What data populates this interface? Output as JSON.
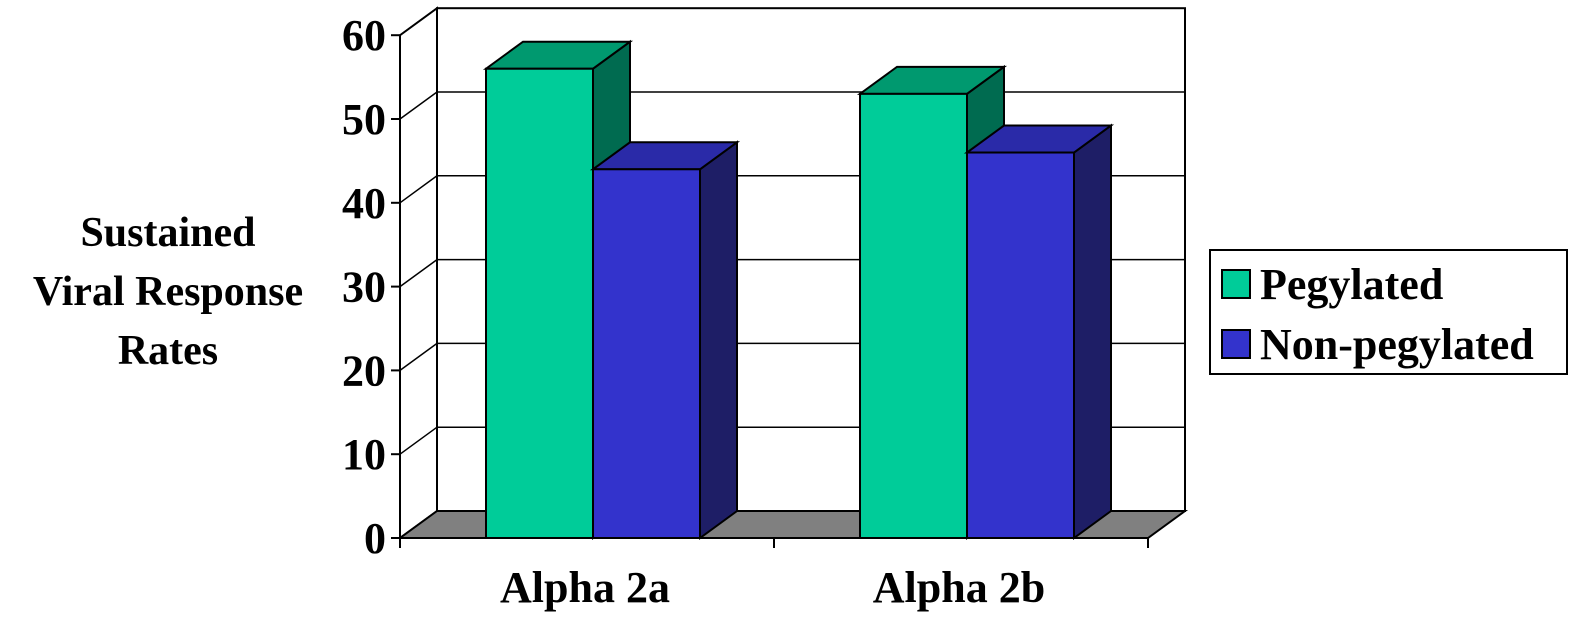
{
  "chart_data": {
    "type": "bar",
    "style": "3d-clustered-column",
    "categories": [
      "Alpha 2a",
      "Alpha 2b"
    ],
    "series": [
      {
        "name": "Pegylated",
        "values": [
          56,
          53
        ],
        "color": "#00CC99",
        "side_color": "#006B50",
        "top_color": "#00996F"
      },
      {
        "name": "Non-pegylated",
        "values": [
          44,
          46
        ],
        "color": "#3333CC",
        "side_color": "#1E1E66",
        "top_color": "#2A2AA8"
      }
    ],
    "ylabel_lines": [
      "Sustained",
      "Viral Response",
      "Rates"
    ],
    "ylim": [
      0,
      60
    ],
    "yticks": [
      0,
      10,
      20,
      30,
      40,
      50,
      60
    ],
    "ytick_labels": [
      "0",
      "10",
      "20",
      "30",
      "40",
      "50",
      "60"
    ],
    "grid": true,
    "legend_position": "right",
    "floor_color": "#808080"
  }
}
